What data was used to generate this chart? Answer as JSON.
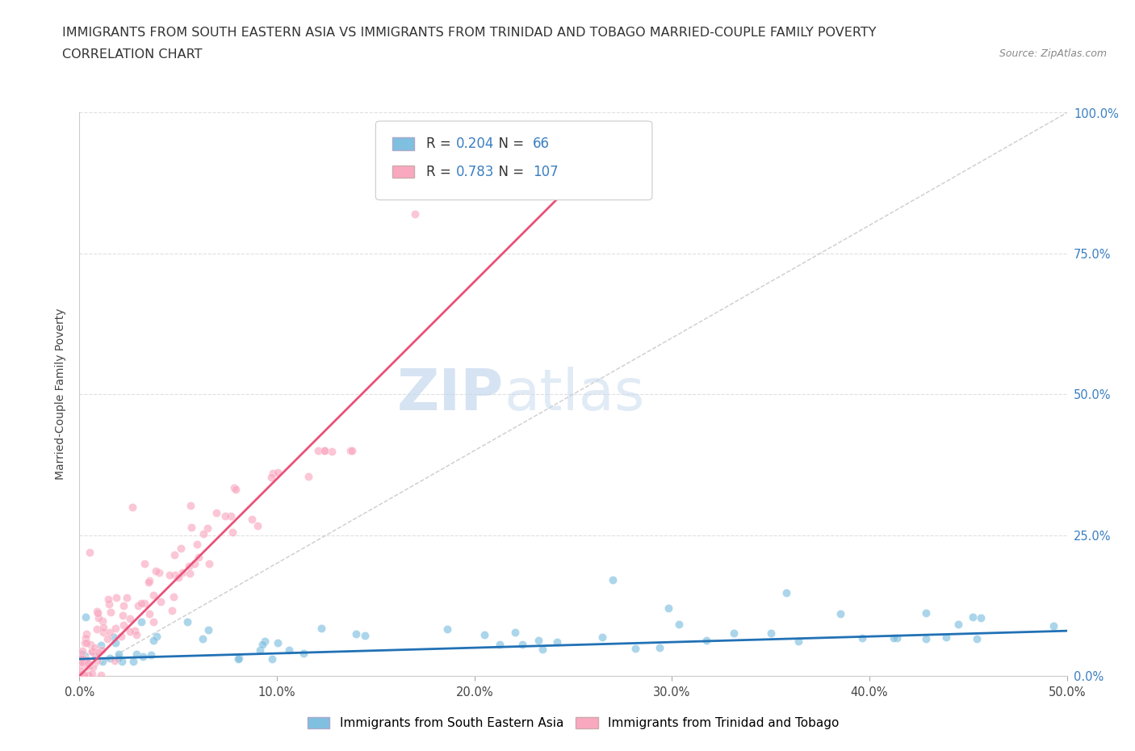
{
  "title_line1": "IMMIGRANTS FROM SOUTH EASTERN ASIA VS IMMIGRANTS FROM TRINIDAD AND TOBAGO MARRIED-COUPLE FAMILY POVERTY",
  "title_line2": "CORRELATION CHART",
  "source": "Source: ZipAtlas.com",
  "ylabel": "Married-Couple Family Poverty",
  "xlim": [
    0.0,
    0.5
  ],
  "ylim": [
    0.0,
    1.0
  ],
  "xtick_values": [
    0.0,
    0.1,
    0.2,
    0.3,
    0.4,
    0.5
  ],
  "xtick_labels": [
    "0.0%",
    "10.0%",
    "20.0%",
    "30.0%",
    "40.0%",
    "50.0%"
  ],
  "ytick_values": [
    0.0,
    0.25,
    0.5,
    0.75,
    1.0
  ],
  "right_ytick_labels": [
    "0.0%",
    "25.0%",
    "50.0%",
    "75.0%",
    "100.0%"
  ],
  "color_sea": "#7fbfdf",
  "color_tt": "#f9a8c0",
  "color_sea_line": "#2171b5",
  "color_tt_line": "#e8527a",
  "color_diag": "#c0c0c0",
  "R_sea": "0.204",
  "N_sea": "66",
  "R_tt": "0.783",
  "N_tt": "107",
  "legend_label_sea": "Immigrants from South Eastern Asia",
  "legend_label_tt": "Immigrants from Trinidad and Tobago",
  "watermark_zip": "ZIP",
  "watermark_atlas": "atlas",
  "background_color": "#ffffff",
  "grid_color": "#e0e0e0",
  "title_fontsize": 11.5,
  "axis_label_fontsize": 10,
  "tick_fontsize": 10.5,
  "legend_fontsize": 11
}
